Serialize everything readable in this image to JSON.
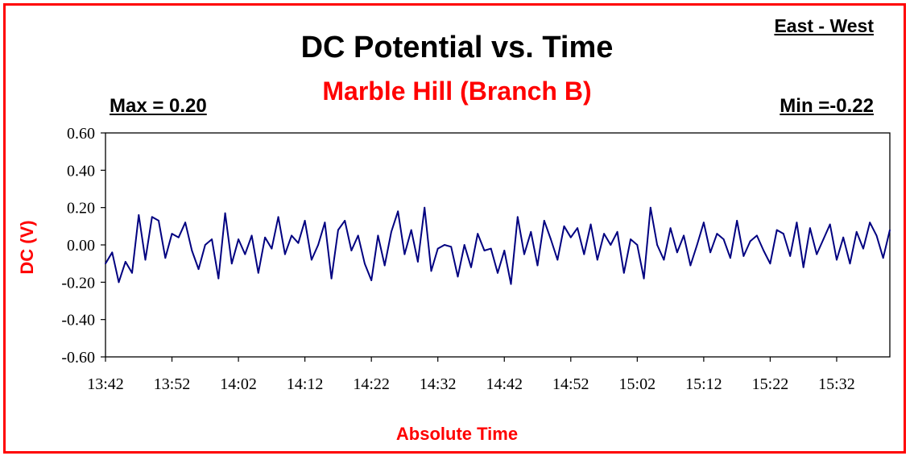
{
  "colors": {
    "frame": "#ff0000",
    "series": "#000080",
    "accent_text": "#ff0000"
  },
  "header": {
    "direction": "East - West",
    "max_label": "Max = 0.20",
    "min_label": "Min =-0.22"
  },
  "chart_data": {
    "type": "line",
    "title": "DC Potential vs. Time",
    "subtitle": "Marble Hill (Branch B)",
    "xlabel": "Absolute Time",
    "ylabel": "DC (V)",
    "ylim": [
      -0.6,
      0.6
    ],
    "yticks": [
      "0.60",
      "0.40",
      "0.20",
      "0.00",
      "-0.20",
      "-0.40",
      "-0.60"
    ],
    "yticks_values": [
      0.6,
      0.4,
      0.2,
      0.0,
      -0.2,
      -0.4,
      -0.6
    ],
    "xlim": [
      "13:42",
      "15:40"
    ],
    "xticks": [
      "13:42",
      "13:52",
      "14:02",
      "14:12",
      "14:22",
      "14:32",
      "14:42",
      "14:52",
      "15:02",
      "15:12",
      "15:22",
      "15:32"
    ],
    "grid": false,
    "series": [
      {
        "x": [
          "13:42",
          "13:43",
          "13:44",
          "13:45",
          "13:46",
          "13:47",
          "13:48",
          "13:49",
          "13:50",
          "13:51",
          "13:52",
          "13:53",
          "13:54",
          "13:55",
          "13:56",
          "13:57",
          "13:58",
          "13:59",
          "14:00",
          "14:01",
          "14:02",
          "14:03",
          "14:04",
          "14:05",
          "14:06",
          "14:07",
          "14:08",
          "14:09",
          "14:10",
          "14:11",
          "14:12",
          "14:13",
          "14:14",
          "14:15",
          "14:16",
          "14:17",
          "14:18",
          "14:19",
          "14:20",
          "14:21",
          "14:22",
          "14:23",
          "14:24",
          "14:25",
          "14:26",
          "14:27",
          "14:28",
          "14:29",
          "14:30",
          "14:31",
          "14:32",
          "14:33",
          "14:34",
          "14:35",
          "14:36",
          "14:37",
          "14:38",
          "14:39",
          "14:40",
          "14:41",
          "14:42",
          "14:43",
          "14:44",
          "14:45",
          "14:46",
          "14:47",
          "14:48",
          "14:49",
          "14:50",
          "14:51",
          "14:52",
          "14:53",
          "14:54",
          "14:55",
          "14:56",
          "14:57",
          "14:58",
          "14:59",
          "15:00",
          "15:01",
          "15:02",
          "15:03",
          "15:04",
          "15:05",
          "15:06",
          "15:07",
          "15:08",
          "15:09",
          "15:10",
          "15:11",
          "15:12",
          "15:13",
          "15:14",
          "15:15",
          "15:16",
          "15:17",
          "15:18",
          "15:19",
          "15:20",
          "15:21",
          "15:22",
          "15:23",
          "15:24",
          "15:25",
          "15:26",
          "15:27",
          "15:28",
          "15:29",
          "15:30",
          "15:31",
          "15:32",
          "15:33",
          "15:34",
          "15:35",
          "15:36",
          "15:37",
          "15:38",
          "15:39",
          "15:40"
        ],
        "values": [
          -0.1,
          -0.04,
          -0.2,
          -0.09,
          -0.15,
          0.16,
          -0.08,
          0.15,
          0.13,
          -0.07,
          0.06,
          0.04,
          0.12,
          -0.03,
          -0.13,
          0.0,
          0.03,
          -0.18,
          0.17,
          -0.1,
          0.03,
          -0.05,
          0.05,
          -0.15,
          0.04,
          -0.02,
          0.15,
          -0.05,
          0.05,
          0.01,
          0.13,
          -0.08,
          0.0,
          0.12,
          -0.18,
          0.08,
          0.13,
          -0.03,
          0.05,
          -0.1,
          -0.19,
          0.05,
          -0.11,
          0.07,
          0.18,
          -0.05,
          0.08,
          -0.09,
          0.2,
          -0.14,
          -0.02,
          0.0,
          -0.01,
          -0.17,
          0.0,
          -0.12,
          0.06,
          -0.03,
          -0.02,
          -0.15,
          -0.03,
          -0.21,
          0.15,
          -0.05,
          0.07,
          -0.11,
          0.13,
          0.03,
          -0.08,
          0.1,
          0.04,
          0.09,
          -0.05,
          0.11,
          -0.08,
          0.06,
          0.0,
          0.07,
          -0.15,
          0.03,
          0.0,
          -0.18,
          0.2,
          0.0,
          -0.08,
          0.09,
          -0.04,
          0.05,
          -0.11,
          0.0,
          0.12,
          -0.04,
          0.06,
          0.03,
          -0.07,
          0.13,
          -0.06,
          0.02,
          0.05,
          -0.03,
          -0.1,
          0.08,
          0.06,
          -0.06,
          0.12,
          -0.12,
          0.09,
          -0.05,
          0.03,
          0.11,
          -0.08,
          0.04,
          -0.1,
          0.07,
          -0.02,
          0.12,
          0.05,
          -0.07,
          0.08
        ]
      }
    ]
  }
}
